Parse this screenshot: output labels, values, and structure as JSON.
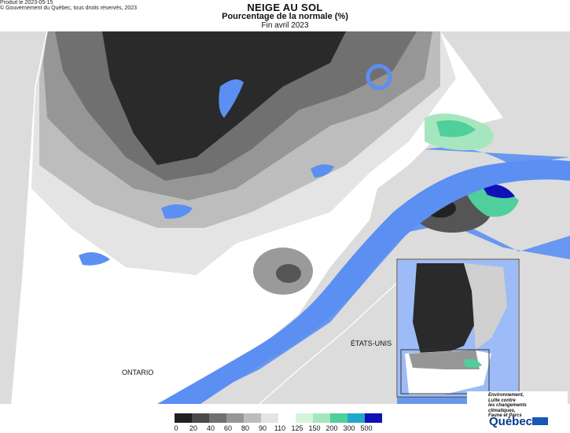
{
  "header": {
    "title": "NEIGE AU SOL",
    "subtitle": "Pourcentage de la normale (%)",
    "period": "Fin avril 2023"
  },
  "map_labels": {
    "etats_unis": "ÉTATS-UNIS",
    "ontario": "ONTARIO"
  },
  "footer": {
    "produit": "Produit le 2023-05-15",
    "copyright": "© Gouvernement du Québec, tous droits réservés, 2023"
  },
  "ministry": {
    "line1": "Environnement,",
    "line2": "Lutte contre",
    "line3": "les changements",
    "line4": "climatiques,",
    "line5": "Faune et Parcs",
    "logo_text": "Québec"
  },
  "legend": {
    "ticks": [
      "0",
      "20",
      "40",
      "60",
      "80",
      "90",
      "110",
      "125",
      "150",
      "200",
      "300",
      "500"
    ],
    "colors": [
      "#202020",
      "#4a4a4a",
      "#707070",
      "#969696",
      "#bdbdbd",
      "#e4e4e4",
      "#ffffff",
      "#d6f3de",
      "#a6e6be",
      "#4fcf9c",
      "#22a8c8",
      "#1010b8"
    ]
  },
  "colors": {
    "water": "#5b8ff2",
    "outside": "#d9d9d9"
  }
}
